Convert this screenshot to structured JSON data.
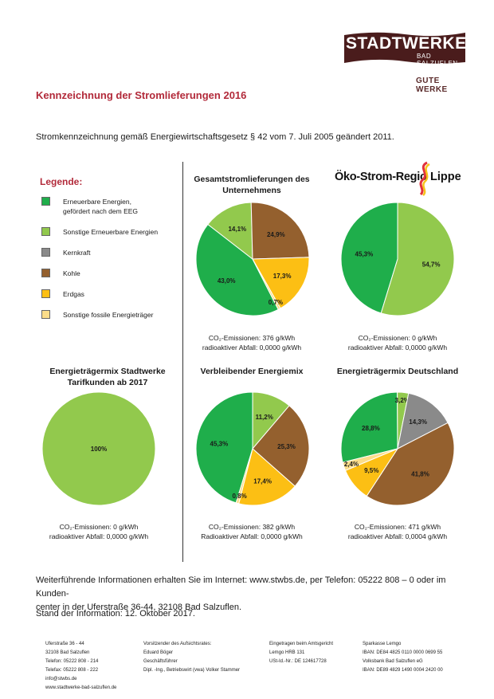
{
  "logo": {
    "name": "STADTWERKE",
    "city": "BAD SALZUFLEN",
    "slogan": "GUTE WERKE",
    "brand_color": "#4a1c1c"
  },
  "header": {
    "title": "Kennzeichnung der Stromlieferungen 2016",
    "intro": "Stromkennzeichnung gemäß Energiewirtschaftsgesetz § 42 vom 7. Juli 2005 geändert 2011."
  },
  "legend": {
    "title": "Legende:",
    "items": [
      {
        "label": "Erneuerbare Energien, gefördert nach dem EEG",
        "color": "#1fae4b"
      },
      {
        "label": "Sonstige Erneuerbare Energien",
        "color": "#92c94d"
      },
      {
        "label": "Kernkraft",
        "color": "#8a8a8a"
      },
      {
        "label": "Kohle",
        "color": "#94602e"
      },
      {
        "label": "Erdgas",
        "color": "#fcbf14"
      },
      {
        "label": "Sonstige fossile Energieträger",
        "color": "#fbdd8a"
      }
    ]
  },
  "oeko_logo": {
    "text": "Öko-Strom-Regio",
    "lippe": "Lippe"
  },
  "chart_data": [
    {
      "type": "pie",
      "title": "Gesamtstromlieferungen des Unternehmens",
      "categories": [
        "Erneuerbare Energien, gefördert nach dem EEG",
        "Sonstige Erneuerbare Energien",
        "Kernkraft",
        "Kohle",
        "Erdgas",
        "Sonstige fossile Energieträger"
      ],
      "values": [
        43.0,
        14.1,
        0,
        24.9,
        17.3,
        0.7
      ],
      "labels": [
        "43,0%",
        "14,1%",
        "",
        "24,9%",
        "17,3%",
        "0,7%"
      ],
      "emissions": "CO₂-Emissionen: 376 g/kWh",
      "waste": "radioaktiver Abfall: 0,0000 g/kWh"
    },
    {
      "type": "pie",
      "title": "",
      "categories": [
        "Erneuerbare Energien, gefördert nach dem EEG",
        "Sonstige Erneuerbare Energien"
      ],
      "values": [
        45.3,
        54.7
      ],
      "labels": [
        "45,3%",
        "54,7%"
      ],
      "emissions": "CO₂-Emissionen: 0 g/kWh",
      "waste": "radioaktiver Abfall: 0,0000 g/kWh"
    },
    {
      "type": "pie",
      "title": "Energieträgermix Stadtwerke Tarifkunden ab 2017",
      "categories": [
        "Sonstige Erneuerbare Energien"
      ],
      "values": [
        100
      ],
      "labels": [
        "100%"
      ],
      "emissions": "CO₂-Emissionen: 0 g/kWh",
      "waste": "radioaktiver Abfall: 0,0000 g/kWh"
    },
    {
      "type": "pie",
      "title": "Verbleibender Energiemix",
      "categories": [
        "Erneuerbare Energien, gefördert nach dem EEG",
        "Sonstige Erneuerbare Energien",
        "Kernkraft",
        "Kohle",
        "Erdgas",
        "Sonstige fossile Energieträger"
      ],
      "values": [
        45.3,
        11.2,
        0,
        25.3,
        17.4,
        0.8
      ],
      "labels": [
        "45,3%",
        "11,2%",
        "",
        "25,3%",
        "17,4%",
        "0,8%"
      ],
      "emissions": "CO₂-Emissionen: 382 g/kWh",
      "waste": "Radioaktiver Abfall: 0,0000 g/kWh"
    },
    {
      "type": "pie",
      "title": "Energieträgermix Deutschland",
      "categories": [
        "Erneuerbare Energien, gefördert nach dem EEG",
        "Sonstige Erneuerbare Energien",
        "Kernkraft",
        "Kohle",
        "Erdgas",
        "Sonstige fossile Energieträger"
      ],
      "values": [
        28.8,
        3.2,
        14.3,
        41.8,
        9.5,
        2.4
      ],
      "labels": [
        "28,8%",
        "3,2%",
        "14,3%",
        "41,8%",
        "9,5%",
        "2,4%"
      ],
      "emissions": "CO₂-Emissionen: 471 g/kWh",
      "waste": "radioaktiver Abfall: 0,0004 g/kWh"
    }
  ],
  "info": {
    "line1": "Weiterführende Informationen erhalten Sie im Internet: www.stwbs.de, per Telefon: 05222 808 – 0 oder im Kunden-",
    "line2": "center in der Uferstraße 36-44, 32108 Bad Salzuflen.",
    "stand": "Stand der Information: 12. Oktober 2017."
  },
  "footer": {
    "col1": [
      "Uferstraße 36 - 44",
      "32108 Bad Salzuflen",
      "Telefon:  05222 808 - 214",
      "Telefax:  05222 808 - 222",
      "info@stwbs.de",
      "www.stadtwerke-bad-salzuflen.de"
    ],
    "col2": [
      "Vorsitzender des Aufsichtsrates:",
      "Eduard Böger",
      "Geschäftsführer",
      "Dipl. -Ing., Betriebswirt (vwa) Volker Stammer"
    ],
    "col3": [
      "Eingetragen beim Amtsgericht",
      "Lemgo HRB 131",
      "USt-Id.-Nr.:  DE 124617728"
    ],
    "col4": [
      "Sparkasse Lemgo",
      "IBAN: DE84 4825 0110 0000 0699 55",
      "Volksbank Bad Salzuflen eG",
      "IBAN: DE89 4829 1490 0004 2420 00"
    ]
  }
}
